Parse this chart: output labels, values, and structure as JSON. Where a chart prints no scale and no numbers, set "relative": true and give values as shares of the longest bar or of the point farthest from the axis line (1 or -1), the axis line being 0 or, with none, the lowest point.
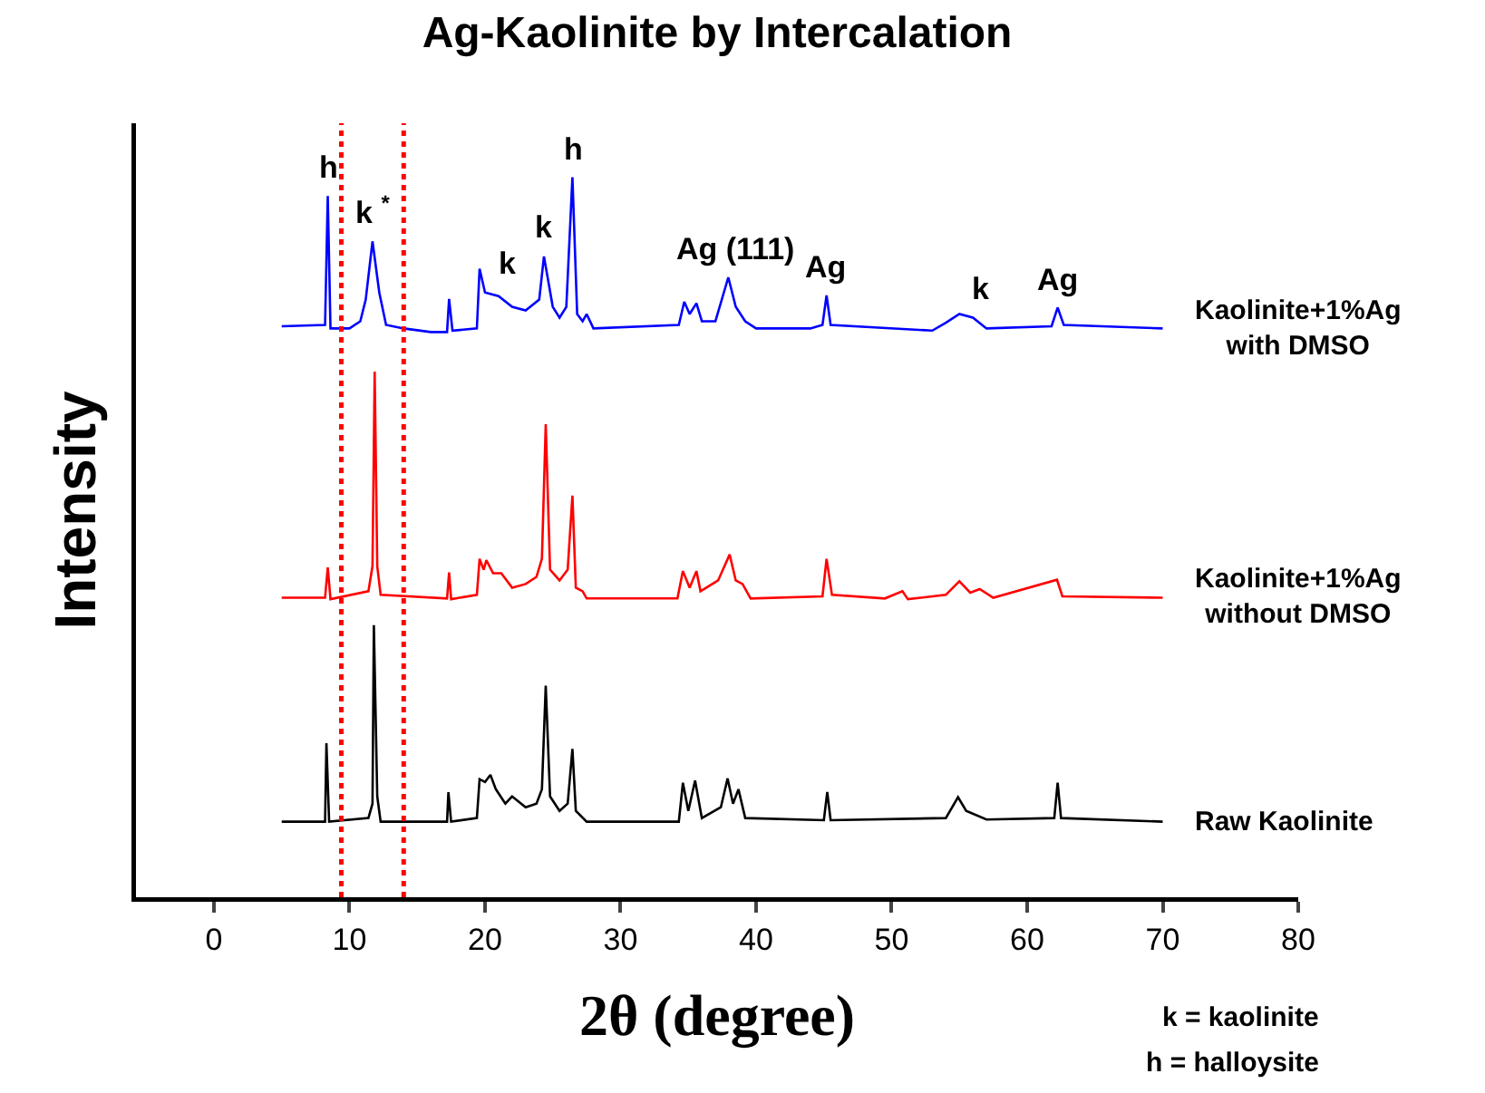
{
  "chart_data": {
    "type": "line",
    "relative": true,
    "title": "Ag-Kaolinite by Intercalation",
    "xlabel": "2θ (degree)",
    "ylabel": "Intensity",
    "xlim": [
      -5.75,
      80
    ],
    "xticks": [
      0,
      10,
      20,
      30,
      40,
      50,
      60,
      70,
      80
    ],
    "legend": false,
    "grid": false,
    "marker": "none",
    "line_style": "solid",
    "series": [
      {
        "name": "Kaolinite+1%Ag\nwith DMSO",
        "color": "#0000ff",
        "x": [
          5,
          8.2,
          8.4,
          8.6,
          10,
          10.8,
          11.2,
          11.7,
          12.2,
          12.7,
          14,
          16,
          17.2,
          17.35,
          17.6,
          19.4,
          19.6,
          20,
          21,
          22,
          23,
          24,
          24.35,
          25,
          25.5,
          26,
          26.45,
          26.8,
          27.2,
          27.5,
          28,
          34.3,
          34.7,
          35.1,
          35.6,
          36,
          37,
          37.95,
          38.5,
          39.2,
          40,
          44,
          44.9,
          45.2,
          45.5,
          53,
          54,
          55,
          56,
          57,
          61.8,
          62.25,
          62.7,
          70
        ],
        "values": [
          0.793,
          0.795,
          0.974,
          0.79,
          0.79,
          0.8,
          0.83,
          0.911,
          0.84,
          0.795,
          0.79,
          0.785,
          0.785,
          0.831,
          0.787,
          0.79,
          0.873,
          0.84,
          0.835,
          0.82,
          0.815,
          0.83,
          0.89,
          0.82,
          0.805,
          0.82,
          1,
          0.81,
          0.8,
          0.81,
          0.79,
          0.795,
          0.827,
          0.81,
          0.825,
          0.8,
          0.8,
          0.861,
          0.82,
          0.8,
          0.79,
          0.79,
          0.795,
          0.836,
          0.795,
          0.787,
          0.798,
          0.81,
          0.805,
          0.79,
          0.793,
          0.819,
          0.795,
          0.79
        ]
      },
      {
        "name": "Kaolinite+1%Ag\nwithout DMSO",
        "color": "#ff0000",
        "x": [
          5,
          8.2,
          8.4,
          8.6,
          11.4,
          11.7,
          11.86,
          12.05,
          12.3,
          17.2,
          17.35,
          17.5,
          19.4,
          19.6,
          19.9,
          20.1,
          20.6,
          21.2,
          22,
          23,
          23.8,
          24.2,
          24.48,
          24.8,
          25.5,
          26.1,
          26.45,
          26.7,
          27.2,
          27.5,
          34.2,
          34.6,
          35.1,
          35.6,
          35.9,
          37.2,
          38.05,
          38.5,
          39,
          39.6,
          44.9,
          45.2,
          45.6,
          49.5,
          50.8,
          51.2,
          54,
          55,
          55.8,
          56.5,
          57.5,
          62.2,
          62.6,
          70
        ],
        "values": [
          0.416,
          0.416,
          0.458,
          0.414,
          0.425,
          0.46,
          0.73,
          0.46,
          0.42,
          0.415,
          0.451,
          0.414,
          0.42,
          0.47,
          0.455,
          0.468,
          0.45,
          0.45,
          0.43,
          0.435,
          0.445,
          0.47,
          0.657,
          0.455,
          0.44,
          0.455,
          0.558,
          0.43,
          0.425,
          0.415,
          0.415,
          0.453,
          0.43,
          0.453,
          0.425,
          0.44,
          0.476,
          0.44,
          0.435,
          0.415,
          0.418,
          0.47,
          0.42,
          0.415,
          0.425,
          0.414,
          0.42,
          0.439,
          0.423,
          0.428,
          0.416,
          0.441,
          0.418,
          0.416
        ]
      },
      {
        "name": "Raw Kaolinite",
        "color": "#000000",
        "x": [
          5,
          8.2,
          8.3,
          8.5,
          11.4,
          11.7,
          11.8,
          12.05,
          12.3,
          17.2,
          17.3,
          17.5,
          19.4,
          19.6,
          20,
          20.4,
          20.8,
          21.5,
          22,
          23,
          23.8,
          24.2,
          24.48,
          24.8,
          25.5,
          26.1,
          26.45,
          26.7,
          27.5,
          30,
          34.3,
          34.6,
          35,
          35.5,
          36,
          37.4,
          37.9,
          38.3,
          38.7,
          39.2,
          45,
          45.25,
          45.5,
          54,
          54.9,
          55.5,
          57,
          62,
          62.25,
          62.5,
          70
        ],
        "values": [
          0.105,
          0.105,
          0.214,
          0.105,
          0.11,
          0.13,
          0.378,
          0.14,
          0.105,
          0.105,
          0.146,
          0.105,
          0.11,
          0.164,
          0.16,
          0.17,
          0.15,
          0.13,
          0.14,
          0.125,
          0.13,
          0.15,
          0.294,
          0.14,
          0.12,
          0.13,
          0.206,
          0.12,
          0.105,
          0.105,
          0.105,
          0.159,
          0.12,
          0.162,
          0.11,
          0.125,
          0.165,
          0.13,
          0.15,
          0.11,
          0.107,
          0.146,
          0.107,
          0.11,
          0.139,
          0.12,
          0.108,
          0.11,
          0.159,
          0.11,
          0.105
        ]
      }
    ],
    "ref_lines": [
      {
        "axis": "x",
        "value": 9.4,
        "color": "#ff0000",
        "line_style": "dotted"
      },
      {
        "axis": "x",
        "value": 14,
        "color": "#ff0000",
        "line_style": "dotted"
      }
    ],
    "annotations": [
      {
        "text": "h",
        "x": 8.4,
        "y": 0.974
      },
      {
        "text": "k $^{*}$",
        "x": 11.7,
        "y": 0.911
      },
      {
        "text": "k",
        "x": 21.7,
        "y": 0.84
      },
      {
        "text": "k",
        "x": 24.35,
        "y": 0.89
      },
      {
        "text": "h",
        "x": 26.45,
        "y": 1
      },
      {
        "text": "Ag (111)",
        "x": 38.5,
        "y": 0.861
      },
      {
        "text": "Ag",
        "x": 45.2,
        "y": 0.836
      },
      {
        "text": "k",
        "x": 56.6,
        "y": 0.805
      },
      {
        "text": "Ag",
        "x": 62.25,
        "y": 0.819
      },
      "k = kaolinite",
      "h = halloysite"
    ]
  }
}
